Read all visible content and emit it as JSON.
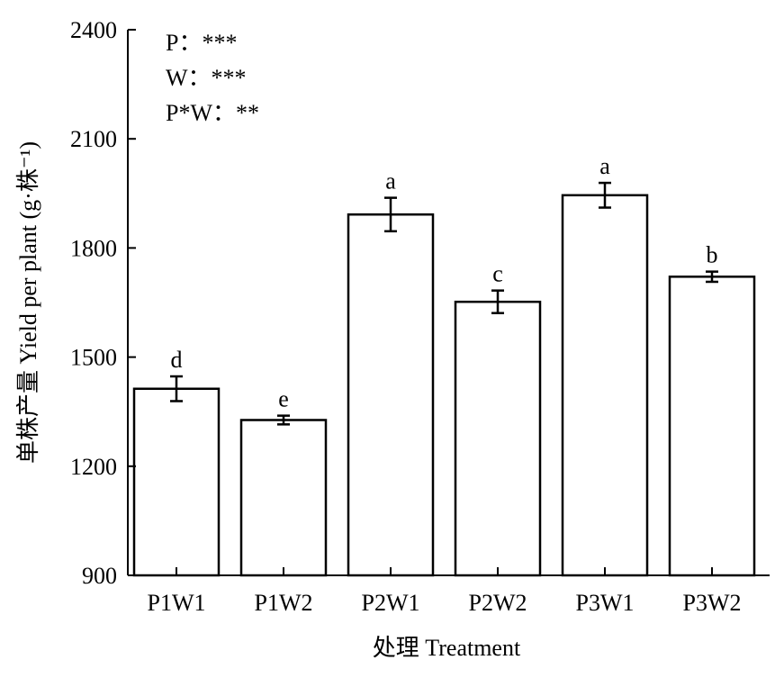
{
  "chart_data": {
    "type": "bar",
    "categories": [
      "P1W1",
      "P1W2",
      "P2W1",
      "P2W2",
      "P3W1",
      "P3W2"
    ],
    "values": [
      1413,
      1327,
      1892,
      1652,
      1945,
      1721
    ],
    "errors": [
      34,
      12,
      46,
      31,
      34,
      14
    ],
    "significance_letters": [
      "d",
      "e",
      "a",
      "c",
      "a",
      "b"
    ],
    "xlabel": "处理 Treatment",
    "ylabel": "单株产量 Yield per plant (g·株⁻¹)",
    "ylim": [
      900,
      2400
    ],
    "yticks": [
      "900",
      "1200",
      "1500",
      "1800",
      "2100",
      "2400"
    ],
    "annotations": [
      "P：***",
      "W：***",
      "P*W：**"
    ],
    "grid": false,
    "bar_fill": "#ffffff",
    "bar_stroke": "#000000"
  }
}
